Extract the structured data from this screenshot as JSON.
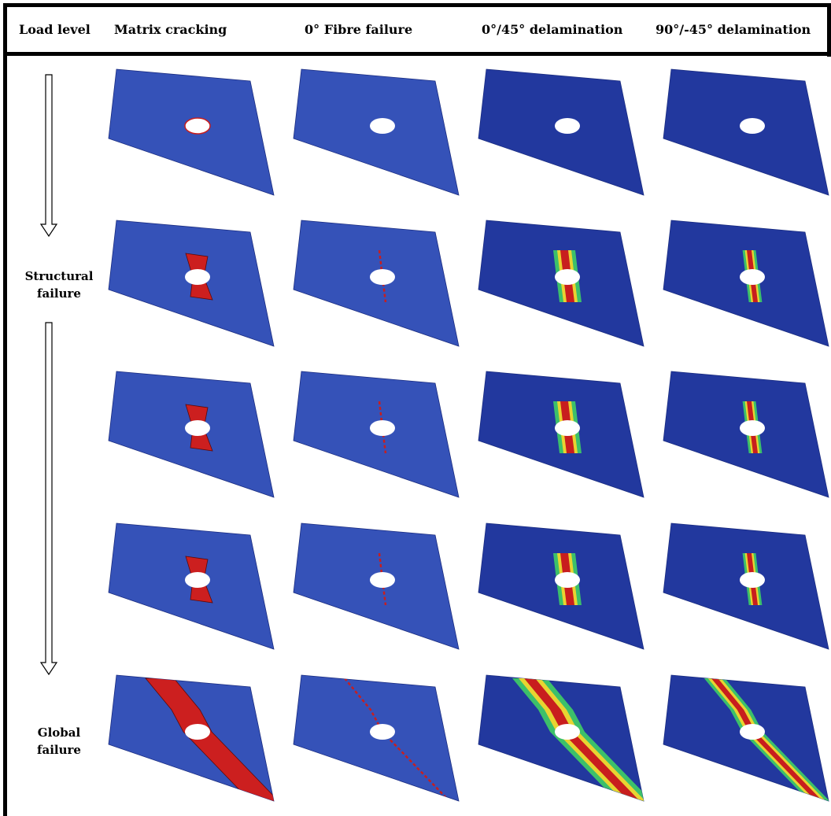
{
  "header": {
    "columns": [
      "Load level",
      "Matrix cracking",
      "0° Fibre failure",
      "0°/45° delamination",
      "90°/-45° delamination"
    ]
  },
  "load_levels": [
    "Structural failure",
    "Global failure"
  ]
}
